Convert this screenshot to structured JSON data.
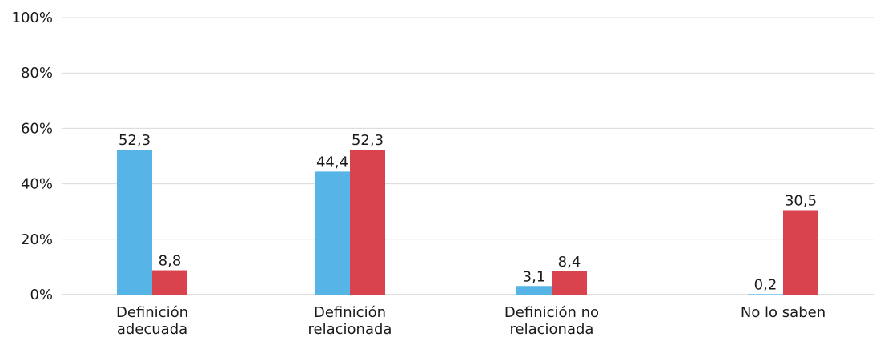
{
  "chart_data": {
    "type": "bar",
    "categories": [
      [
        "Definición",
        "adecuada"
      ],
      [
        "Definición",
        "relacionada"
      ],
      [
        "Definición no",
        "relacionada"
      ],
      [
        "No lo saben"
      ]
    ],
    "series": [
      {
        "color": "#56b4e6",
        "values": [
          52.3,
          44.4,
          3.1,
          0.2
        ],
        "labels": [
          "52,3",
          "44,4",
          "3,1",
          "0,2"
        ]
      },
      {
        "color": "#d9434e",
        "values": [
          8.8,
          52.3,
          8.4,
          30.5
        ],
        "labels": [
          "8,8",
          "52,3",
          "8,4",
          "30,5"
        ]
      }
    ],
    "yticks": [
      "0%",
      "20%",
      "40%",
      "60%",
      "80%",
      "100%"
    ],
    "ylim": [
      0,
      100
    ],
    "grid": true,
    "legend": "none",
    "title": "",
    "xlabel": "",
    "ylabel": ""
  }
}
